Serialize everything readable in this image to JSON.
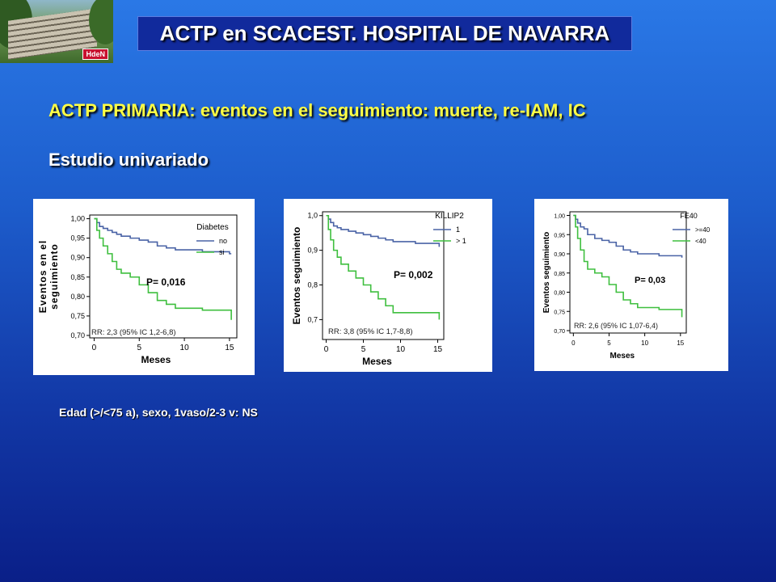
{
  "header": {
    "title": "ACTP en SCACEST. HOSPITAL DE NAVARRA",
    "logo_badge": "HdeN"
  },
  "subtitle": "ACTP PRIMARIA: eventos en el seguimiento:  muerte, re-IAM, IC",
  "analysis_label": "Estudio univariado",
  "footnote": "Edad (>/<75 a), sexo, 1vaso/2-3 v: NS",
  "colors": {
    "blue_curve": "#4a63a6",
    "green_curve": "#3fbf3f",
    "title_text": "#ffffff",
    "subtitle_text": "#ffff44"
  },
  "chart_data": [
    {
      "type": "line",
      "xlabel": "Meses",
      "ylabel": "Eventos en el seguimiento",
      "xlim": [
        0,
        15
      ],
      "ylim": [
        0.7,
        1.0
      ],
      "xticks": [
        "0",
        "5",
        "10",
        "15"
      ],
      "yticks": [
        "0,70",
        "0,75",
        "0,80",
        "0,85",
        "0,90",
        "0,95",
        "1,00"
      ],
      "legend_title": "Diabetes",
      "legend": "right",
      "p_value": "P=  0,016",
      "rr": "RR: 2,3 (95% IC 1,2-6,8)",
      "series": [
        {
          "name": "no",
          "color": "#4a63a6",
          "x": [
            0,
            0.3,
            0.6,
            1,
            1.5,
            2,
            2.5,
            3,
            4,
            5,
            6,
            7,
            8,
            9,
            12,
            15,
            15.2
          ],
          "y": [
            1.0,
            0.99,
            0.98,
            0.975,
            0.97,
            0.965,
            0.96,
            0.955,
            0.95,
            0.945,
            0.94,
            0.93,
            0.925,
            0.92,
            0.915,
            0.91,
            0.91
          ]
        },
        {
          "name": "si",
          "color": "#3fbf3f",
          "x": [
            0,
            0.3,
            0.6,
            1,
            1.5,
            2,
            2.5,
            3,
            4,
            5,
            6,
            7,
            8,
            9,
            12,
            15,
            15.2
          ],
          "y": [
            1.0,
            0.97,
            0.95,
            0.93,
            0.91,
            0.89,
            0.87,
            0.86,
            0.85,
            0.83,
            0.81,
            0.79,
            0.78,
            0.77,
            0.765,
            0.765,
            0.74
          ]
        }
      ]
    },
    {
      "type": "line",
      "xlabel": "Meses",
      "ylabel": "Eventos seguimiento",
      "xlim": [
        0,
        15
      ],
      "ylim": [
        0.65,
        1.0
      ],
      "xticks": [
        "0",
        "5",
        "10",
        "15"
      ],
      "yticks": [
        "0,7",
        "0,8",
        "0,9",
        "1,0"
      ],
      "legend_title": "KILLIP2",
      "legend": "right",
      "p_value": "P= 0,002",
      "rr": "RR: 3,8 (95% IC 1,7-8,8)",
      "series": [
        {
          "name": "1",
          "color": "#4a63a6",
          "x": [
            0,
            0.3,
            0.6,
            1,
            1.5,
            2,
            3,
            4,
            5,
            6,
            7,
            8,
            9,
            12,
            15,
            15.2
          ],
          "y": [
            1.0,
            0.99,
            0.98,
            0.97,
            0.965,
            0.96,
            0.955,
            0.95,
            0.945,
            0.94,
            0.935,
            0.93,
            0.925,
            0.92,
            0.92,
            0.91
          ]
        },
        {
          "name": "> 1",
          "color": "#3fbf3f",
          "x": [
            0,
            0.3,
            0.6,
            1,
            1.5,
            2,
            3,
            4,
            5,
            6,
            7,
            8,
            9,
            12,
            15,
            15.2
          ],
          "y": [
            1.0,
            0.96,
            0.93,
            0.9,
            0.88,
            0.86,
            0.84,
            0.82,
            0.8,
            0.78,
            0.76,
            0.74,
            0.72,
            0.72,
            0.72,
            0.7
          ]
        }
      ]
    },
    {
      "type": "line",
      "xlabel": "Meses",
      "ylabel": "Eventos seguimiento",
      "xlim": [
        0,
        15
      ],
      "ylim": [
        0.7,
        1.0
      ],
      "xticks": [
        "0",
        "5",
        "10",
        "15"
      ],
      "yticks": [
        "0,70",
        "0,75",
        "0,80",
        "0,85",
        "0,90",
        "0,95",
        "1,00"
      ],
      "legend_title": "FE40",
      "legend": "right",
      "p_value": "P= 0,03",
      "rr": "RR: 2,6 (95% IC 1,07-6,4)",
      "series": [
        {
          "name": ">=40",
          "color": "#4a63a6",
          "x": [
            0,
            0.3,
            0.6,
            1,
            1.5,
            2,
            3,
            4,
            5,
            6,
            7,
            8,
            9,
            12,
            15,
            15.2
          ],
          "y": [
            1.0,
            0.99,
            0.98,
            0.97,
            0.965,
            0.95,
            0.94,
            0.935,
            0.93,
            0.92,
            0.91,
            0.905,
            0.9,
            0.895,
            0.895,
            0.89
          ]
        },
        {
          "name": "<40",
          "color": "#3fbf3f",
          "x": [
            0,
            0.3,
            0.6,
            1,
            1.5,
            2,
            3,
            4,
            5,
            6,
            7,
            8,
            9,
            12,
            15,
            15.2
          ],
          "y": [
            1.0,
            0.97,
            0.94,
            0.91,
            0.88,
            0.86,
            0.85,
            0.84,
            0.82,
            0.8,
            0.78,
            0.77,
            0.76,
            0.755,
            0.755,
            0.735
          ]
        }
      ]
    }
  ]
}
